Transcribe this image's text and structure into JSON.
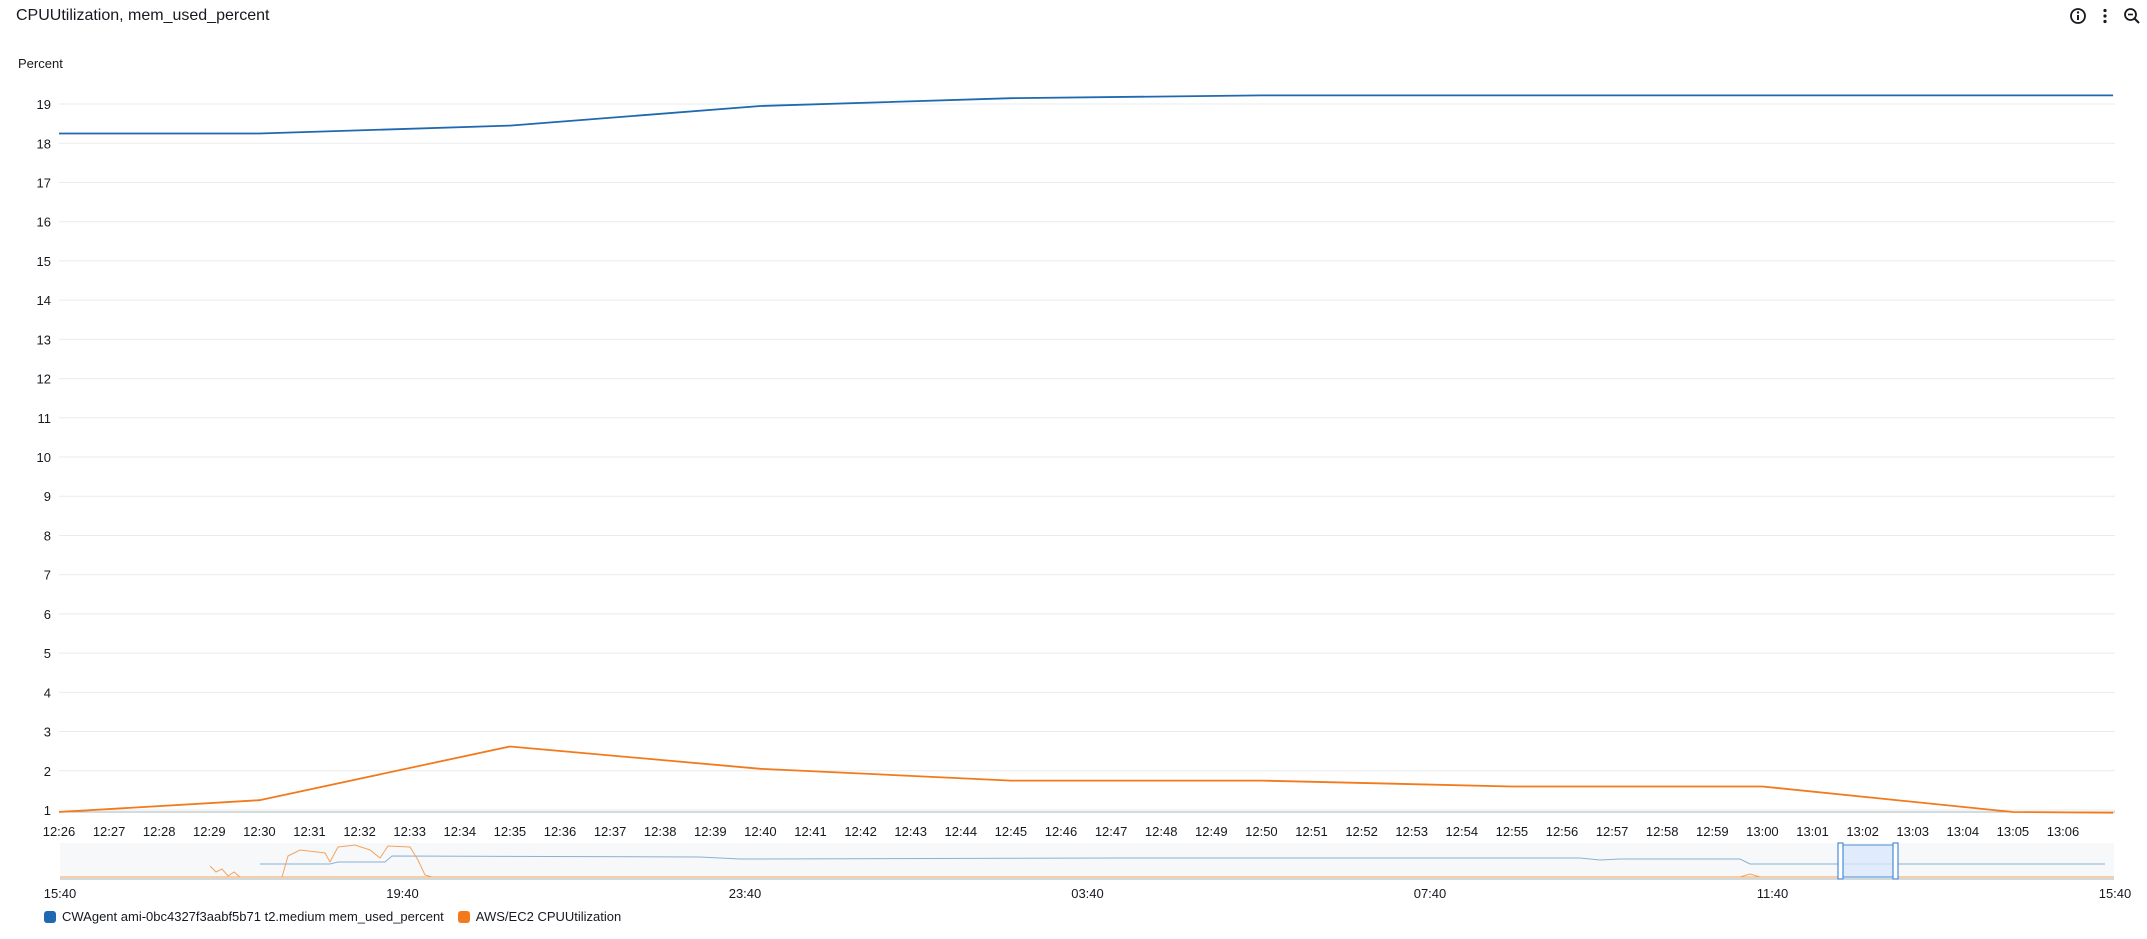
{
  "widget": {
    "title": "CPUUtilization, mem_used_percent",
    "icons": [
      "info-icon",
      "more-options-icon",
      "zoom-icon"
    ]
  },
  "colors": {
    "mem": "#1f69b0",
    "cpu": "#f27a1c",
    "grid": "#e9ebed",
    "nav_window": "#d8e8fb",
    "nav_window_border": "#4a8cd9"
  },
  "chart_data": {
    "type": "line",
    "ylabel": "Percent",
    "ylim": [
      1,
      19.2
    ],
    "yticks": [
      1,
      2,
      3,
      4,
      5,
      6,
      7,
      8,
      9,
      10,
      11,
      12,
      13,
      14,
      15,
      16,
      17,
      18,
      19
    ],
    "x_range": [
      "12:26",
      "13:07"
    ],
    "xticks": [
      "12:26",
      "12:27",
      "12:28",
      "12:29",
      "12:30",
      "12:31",
      "12:32",
      "12:33",
      "12:34",
      "12:35",
      "12:36",
      "12:37",
      "12:38",
      "12:39",
      "12:40",
      "12:41",
      "12:42",
      "12:43",
      "12:44",
      "12:45",
      "12:46",
      "12:47",
      "12:48",
      "12:49",
      "12:50",
      "12:51",
      "12:52",
      "12:53",
      "12:54",
      "12:55",
      "12:56",
      "12:57",
      "12:58",
      "12:59",
      "13:00",
      "13:01",
      "13:02",
      "13:03",
      "13:04",
      "13:05",
      "13:06"
    ],
    "grid": true,
    "legend_position": "bottom-left",
    "series": [
      {
        "name": "CWAgent ami-0bc4327f3aabf5b71 t2.medium mem_used_percent",
        "color": "#1f69b0",
        "points": [
          [
            "12:26",
            18.25
          ],
          [
            "12:30",
            18.25
          ],
          [
            "12:35",
            18.45
          ],
          [
            "12:40",
            18.95
          ],
          [
            "12:45",
            19.15
          ],
          [
            "12:50",
            19.22
          ],
          [
            "13:07",
            19.22
          ]
        ]
      },
      {
        "name": "AWS/EC2 CPUUtilization",
        "color": "#f27a1c",
        "points": [
          [
            "12:26",
            0.95
          ],
          [
            "12:30",
            1.25
          ],
          [
            "12:35",
            2.62
          ],
          [
            "12:40",
            2.05
          ],
          [
            "12:45",
            1.75
          ],
          [
            "12:50",
            1.75
          ],
          [
            "12:55",
            1.6
          ],
          [
            "13:00",
            1.6
          ],
          [
            "13:05",
            0.95
          ],
          [
            "13:07",
            0.93
          ]
        ]
      }
    ]
  },
  "navigator": {
    "ticks": [
      "15:40",
      "19:40",
      "23:40",
      "03:40",
      "07:40",
      "11:40",
      "15:40"
    ]
  }
}
